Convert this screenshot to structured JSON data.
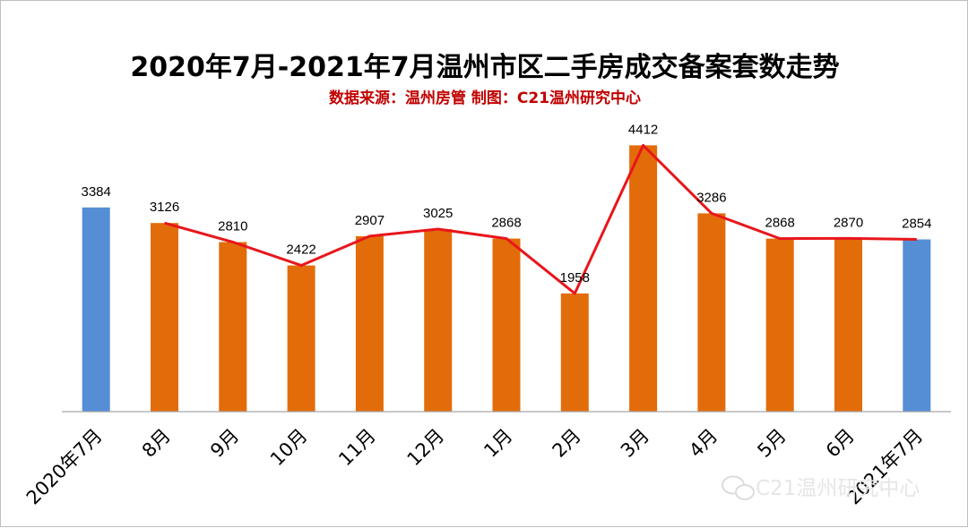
{
  "chart_data": {
    "type": "bar",
    "title": "2020年7月-2021年7月温州市区二手房成交备案套数走势",
    "subtitle": "数据来源：温州房管 制图：C21温州研究中心",
    "categories": [
      "2020年7月",
      "8月",
      "9月",
      "10月",
      "11月",
      "12月",
      "1月",
      "2月",
      "3月",
      "4月",
      "5月",
      "6月",
      "2021年7月"
    ],
    "values": [
      3384,
      3126,
      2810,
      2422,
      2907,
      3025,
      2868,
      1958,
      4412,
      3286,
      2868,
      2870,
      2854
    ],
    "highlight_categories": [
      "2020年7月",
      "2021年7月"
    ],
    "trend_line": {
      "categories": [
        "8月",
        "9月",
        "10月",
        "11月",
        "12月",
        "1月",
        "2月",
        "3月",
        "4月",
        "5月",
        "6月",
        "2021年7月"
      ],
      "values": [
        3126,
        2810,
        2422,
        2907,
        3025,
        2868,
        1958,
        4412,
        3286,
        2868,
        2870,
        2854
      ]
    },
    "ylim": [
      0,
      4700
    ],
    "xlabel": "",
    "ylabel": "",
    "grid": false,
    "colors": {
      "bar": "#e36c0a",
      "highlight": "#558ed5",
      "trend": "#e8161c"
    }
  },
  "watermark": {
    "icon": "wechat-icon",
    "text": "C21温州研究中心"
  }
}
